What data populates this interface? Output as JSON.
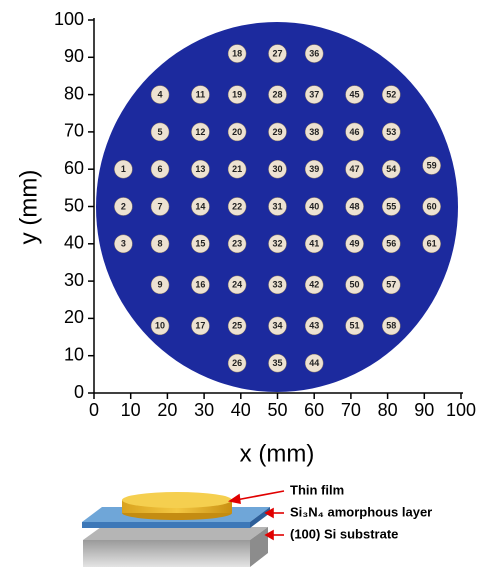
{
  "chart_data": {
    "type": "scatter",
    "xlabel": "x (mm)",
    "ylabel": "y (mm)",
    "xlim": [
      0,
      100
    ],
    "ylim": [
      0,
      100
    ],
    "xticks": [
      0,
      10,
      20,
      30,
      40,
      50,
      60,
      70,
      80,
      90,
      100
    ],
    "yticks": [
      0,
      10,
      20,
      30,
      40,
      50,
      60,
      70,
      80,
      90,
      100
    ],
    "color": "#ede2d2",
    "series": [
      {
        "labels": [
          "1",
          "2",
          "3",
          "4",
          "5",
          "6",
          "7",
          "8",
          "9",
          "10",
          "11",
          "12",
          "13",
          "14",
          "15",
          "16",
          "17",
          "18",
          "19",
          "20",
          "21",
          "22",
          "23",
          "24",
          "25",
          "26",
          "27",
          "28",
          "29",
          "30",
          "31",
          "32",
          "33",
          "34",
          "35",
          "36",
          "37",
          "38",
          "39",
          "40",
          "41",
          "42",
          "43",
          "44",
          "45",
          "46",
          "47",
          "48",
          "49",
          "50",
          "51",
          "52",
          "53",
          "54",
          "55",
          "56",
          "57",
          "58",
          "59",
          "60",
          "61"
        ],
        "x": [
          8,
          8,
          8,
          18,
          18,
          18,
          18,
          18,
          18,
          18,
          29,
          29,
          29,
          29,
          29,
          29,
          29,
          39,
          39,
          39,
          39,
          39,
          39,
          39,
          39,
          39,
          50,
          50,
          50,
          50,
          50,
          50,
          50,
          50,
          50,
          60,
          60,
          60,
          60,
          60,
          60,
          60,
          60,
          60,
          71,
          71,
          71,
          71,
          71,
          71,
          71,
          81,
          81,
          81,
          81,
          81,
          81,
          81,
          92,
          92,
          92
        ],
        "y": [
          60,
          50,
          40,
          80,
          70,
          60,
          50,
          40,
          29,
          18,
          80,
          70,
          60,
          50,
          40,
          29,
          18,
          91,
          80,
          70,
          60,
          50,
          40,
          29,
          18,
          8,
          91,
          80,
          70,
          60,
          50,
          40,
          29,
          18,
          8,
          91,
          80,
          70,
          60,
          50,
          40,
          29,
          18,
          8,
          80,
          70,
          60,
          50,
          40,
          29,
          18,
          80,
          70,
          60,
          50,
          40,
          29,
          18,
          61,
          50,
          40
        ]
      }
    ]
  },
  "schematic": {
    "labels": [
      "Thin film",
      "Si₃N₄ amorphous layer",
      "(100) Si substrate"
    ]
  }
}
